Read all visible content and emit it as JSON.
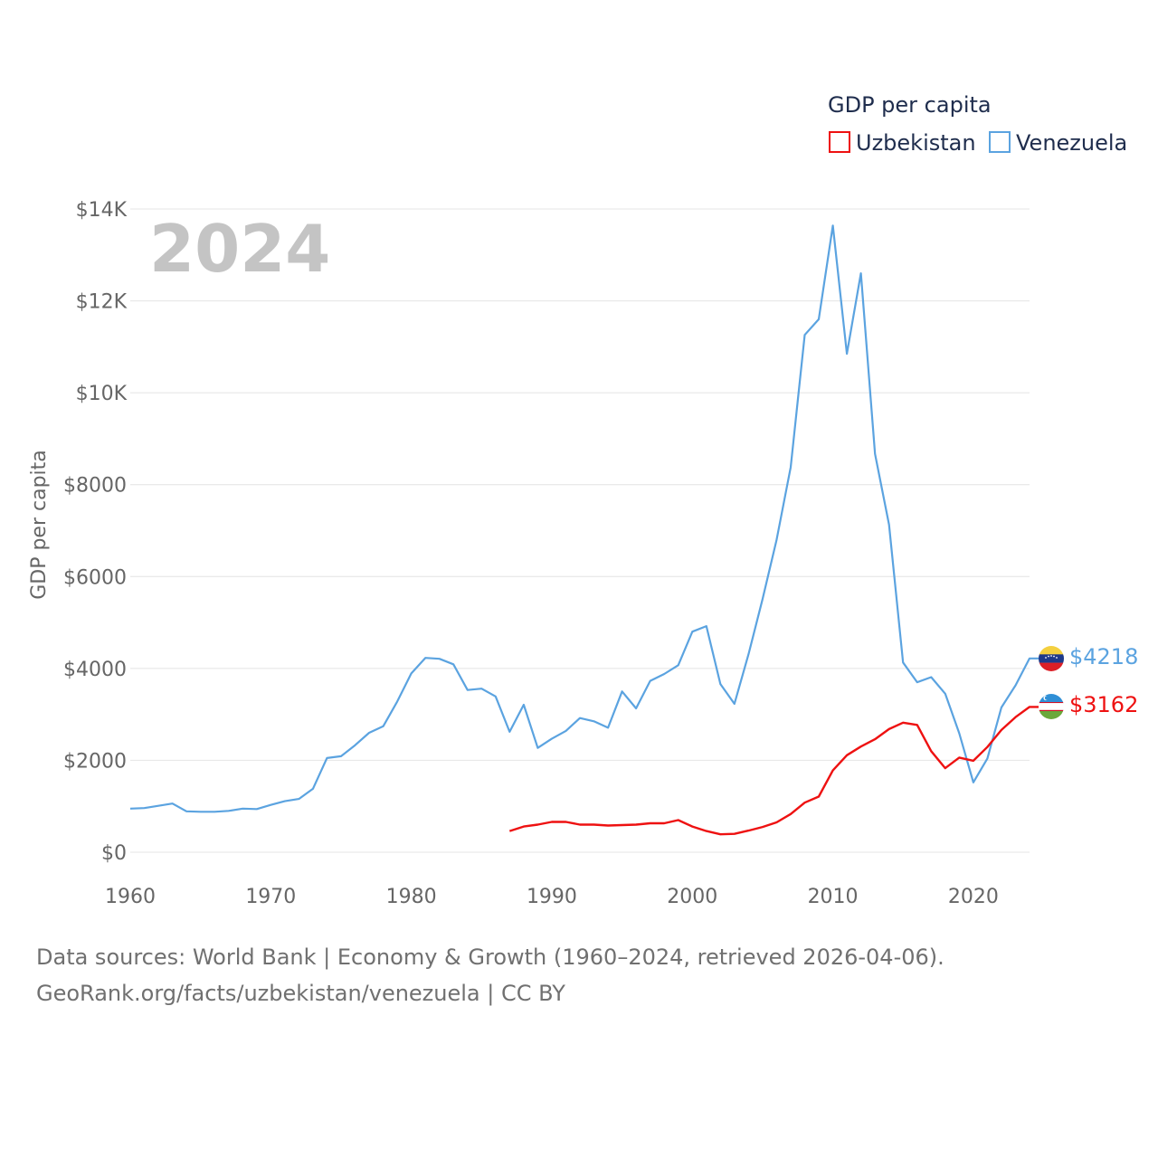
{
  "chart_data": {
    "type": "line",
    "year_label": "2024",
    "ylabel": "GDP per capita",
    "xlim": [
      1960,
      2024
    ],
    "ylim": [
      0,
      14000
    ],
    "x_ticks": [
      1960,
      1970,
      1980,
      1990,
      2000,
      2010,
      2020
    ],
    "x_tick_labels": [
      "1960",
      "1970",
      "1980",
      "1990",
      "2000",
      "2010",
      "2020"
    ],
    "y_ticks": [
      0,
      2000,
      4000,
      6000,
      8000,
      10000,
      12000,
      14000
    ],
    "y_tick_labels": [
      "$0",
      "$2000",
      "$4000",
      "$6000",
      "$8000",
      "$10K",
      "$12K",
      "$14K"
    ],
    "grid": true,
    "legend": {
      "title": "GDP per capita",
      "position": "top-right",
      "entries": [
        "Uzbekistan",
        "Venezuela"
      ]
    },
    "series": [
      {
        "name": "Uzbekistan",
        "color": "#ee1111",
        "end_label": "$3162",
        "flag": "uzbekistan-flag",
        "x": [
          1987,
          1988,
          1989,
          1990,
          1991,
          1992,
          1993,
          1994,
          1995,
          1996,
          1997,
          1998,
          1999,
          2000,
          2001,
          2002,
          2003,
          2004,
          2005,
          2006,
          2007,
          2008,
          2009,
          2010,
          2011,
          2012,
          2013,
          2014,
          2015,
          2016,
          2017,
          2018,
          2019,
          2020,
          2021,
          2022,
          2023,
          2024
        ],
        "values": [
          460,
          560,
          600,
          660,
          660,
          600,
          600,
          580,
          590,
          600,
          630,
          630,
          700,
          560,
          460,
          390,
          400,
          470,
          550,
          650,
          830,
          1080,
          1210,
          1780,
          2110,
          2300,
          2460,
          2680,
          2820,
          2770,
          2200,
          1830,
          2060,
          1990,
          2290,
          2660,
          2940,
          3162
        ]
      },
      {
        "name": "Venezuela",
        "color": "#5ba3e0",
        "end_label": "$4218",
        "flag": "venezuela-flag",
        "x": [
          1960,
          1961,
          1962,
          1963,
          1964,
          1965,
          1966,
          1967,
          1968,
          1969,
          1970,
          1971,
          1972,
          1973,
          1974,
          1975,
          1976,
          1977,
          1978,
          1979,
          1980,
          1981,
          1982,
          1983,
          1984,
          1985,
          1986,
          1987,
          1988,
          1989,
          1990,
          1991,
          1992,
          1993,
          1994,
          1995,
          1996,
          1997,
          1998,
          1999,
          2000,
          2001,
          2002,
          2003,
          2004,
          2005,
          2006,
          2007,
          2008,
          2009,
          2010,
          2011,
          2012,
          2013,
          2014,
          2015,
          2016,
          2017,
          2018,
          2019,
          2020,
          2021,
          2022,
          2023,
          2024
        ],
        "values": [
          950,
          960,
          1010,
          1060,
          890,
          880,
          880,
          900,
          950,
          940,
          1030,
          1110,
          1160,
          1380,
          2050,
          2090,
          2330,
          2600,
          2740,
          3280,
          3890,
          4230,
          4210,
          4090,
          3530,
          3560,
          3390,
          2620,
          3210,
          2270,
          2470,
          2640,
          2920,
          2850,
          2710,
          3500,
          3130,
          3730,
          3880,
          4070,
          4800,
          4920,
          3660,
          3230,
          4310,
          5510,
          6800,
          8380,
          11260,
          11600,
          13640,
          10850,
          12600,
          8670,
          7130,
          4130,
          3700,
          3810,
          3450,
          2590,
          1520,
          2040,
          3150,
          3630,
          4218
        ]
      }
    ]
  },
  "footer": {
    "line1": "Data sources: World Bank | Economy & Growth (1960–2024, retrieved 2026-04-06).",
    "line2": "GeoRank.org/facts/uzbekistan/venezuela | CC BY"
  }
}
